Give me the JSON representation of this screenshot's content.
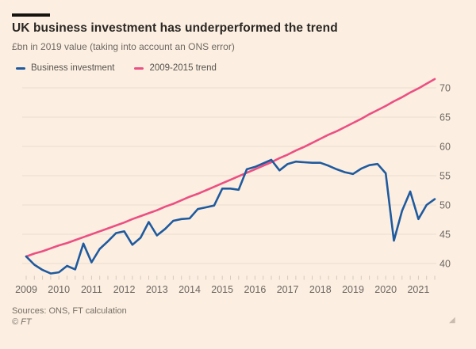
{
  "header": {
    "title": "UK business investment has underperformed the trend",
    "subtitle": "£bn in 2019 value (taking into account an ONS error)"
  },
  "legend": {
    "items": [
      {
        "label": "Business investment",
        "color": "#1f5a9e"
      },
      {
        "label": "2009-2015 trend",
        "color": "#ec4f81"
      }
    ]
  },
  "footer": {
    "sources": "Sources: ONS, FT calculation",
    "copyright": "© FT",
    "resize_icon": "◢"
  },
  "colors": {
    "background": "#fcefe2",
    "accent_bar": "#16120d",
    "gridline": "#eaddcd",
    "blue_line": "#1f5a9e",
    "pink_line": "#ec4f81"
  },
  "chart_data": {
    "type": "line",
    "title": "UK business investment has underperformed the trend",
    "subtitle": "£bn in 2019 value (taking into account an ONS error)",
    "unit": "£bn in 2019 value",
    "x_start": 2009,
    "x_step_years": 0.25,
    "x_tick_years": [
      2009,
      2010,
      2011,
      2012,
      2013,
      2014,
      2015,
      2016,
      2017,
      2018,
      2019,
      2020,
      2021
    ],
    "y_ticks": [
      40,
      45,
      50,
      55,
      60,
      65,
      70
    ],
    "ylim": [
      38,
      72
    ],
    "grid": "horizontal-only",
    "legend_position": "top-left",
    "y_axis_side": "right",
    "series": [
      {
        "name": "Business investment",
        "color": "#1f5a9e",
        "values": [
          41.2,
          39.8,
          38.9,
          38.3,
          38.5,
          39.6,
          39.0,
          43.4,
          40.2,
          42.5,
          43.8,
          45.2,
          45.5,
          43.2,
          44.4,
          47.1,
          44.8,
          45.9,
          47.3,
          47.6,
          47.7,
          49.3,
          49.6,
          49.9,
          52.8,
          52.8,
          52.6,
          56.1,
          56.5,
          57.1,
          57.7,
          55.9,
          57.0,
          57.4,
          57.3,
          57.2,
          57.2,
          56.7,
          56.1,
          55.6,
          55.3,
          56.2,
          56.8,
          57.0,
          55.4,
          43.9,
          49.0,
          52.3,
          47.6,
          50.0,
          51.0
        ]
      },
      {
        "name": "2009-2015 trend",
        "color": "#ec4f81",
        "values": [
          41.2,
          41.7,
          42.1,
          42.6,
          43.1,
          43.5,
          44.0,
          44.5,
          45.0,
          45.5,
          46.0,
          46.5,
          47.0,
          47.6,
          48.1,
          48.6,
          49.1,
          49.7,
          50.2,
          50.8,
          51.4,
          51.9,
          52.5,
          53.1,
          53.7,
          54.3,
          54.9,
          55.5,
          56.1,
          56.7,
          57.3,
          58.0,
          58.6,
          59.3,
          59.9,
          60.6,
          61.3,
          62.0,
          62.6,
          63.3,
          64.0,
          64.7,
          65.5,
          66.2,
          66.9,
          67.7,
          68.4,
          69.2,
          69.9,
          70.7,
          71.5
        ]
      }
    ]
  }
}
